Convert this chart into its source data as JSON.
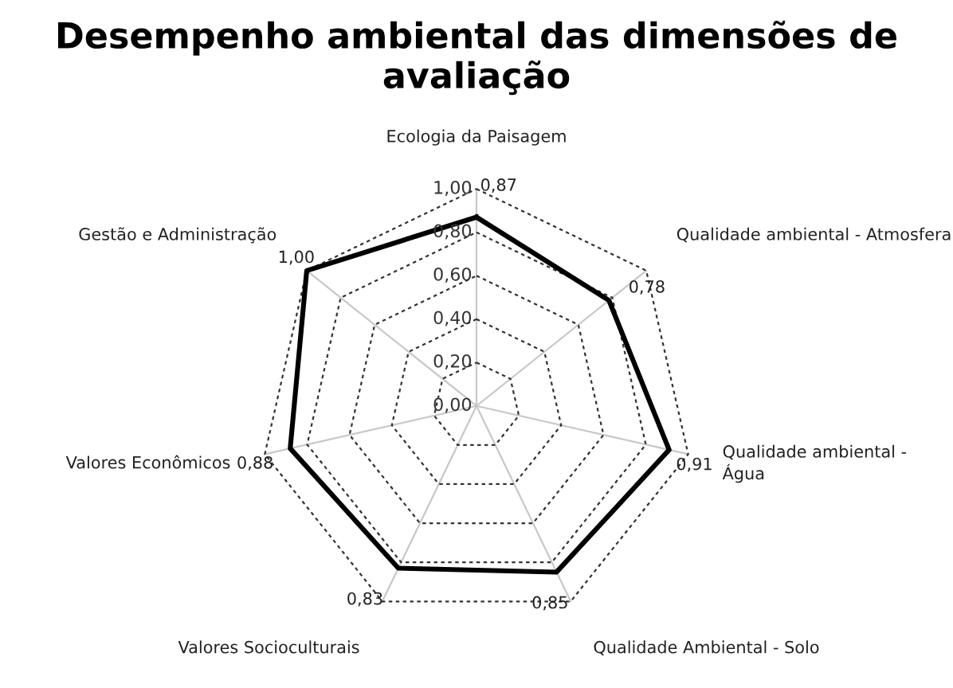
{
  "chart_data": {
    "type": "radar",
    "title": "Desempenho ambiental das dimensões de avaliação",
    "categories": [
      "Ecologia da Paisagem",
      "Qualidade ambiental - Atmosfera",
      "Qualidade ambiental - Água",
      "Qualidade Ambiental - Solo",
      "Valores Socioculturais",
      "Valores Econômicos",
      "Gestão e Administração"
    ],
    "series": [
      {
        "color": "#000000",
        "values": [
          0.87,
          0.78,
          0.91,
          0.85,
          0.83,
          0.88,
          1.0
        ],
        "value_labels": [
          "0,87",
          "0,78",
          "0,91",
          "0,85",
          "0,83",
          "0,88",
          "1,00"
        ]
      }
    ],
    "ylim": [
      0,
      1
    ],
    "yticks": [
      {
        "value": 0,
        "label": "0,00"
      },
      {
        "value": 0.2,
        "label": "0,20"
      },
      {
        "value": 0.4,
        "label": "0,40"
      },
      {
        "value": 0.6,
        "label": "0,60"
      },
      {
        "value": 0.8,
        "label": "0,80"
      },
      {
        "value": 1,
        "label": "1,00"
      }
    ],
    "grid": true,
    "line_style": "solid",
    "marker": "none"
  }
}
